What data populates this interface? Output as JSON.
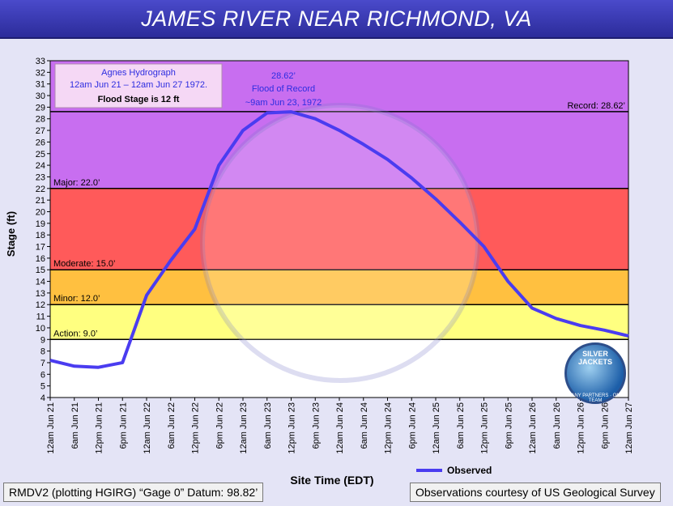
{
  "title": "JAMES RIVER NEAR RICHMOND, VA",
  "info_box": {
    "line1": "Agnes Hydrograph",
    "line2": "12am Jun 21 – 12am Jun 27 1972.",
    "line3": "Flood Stage is 12 ft"
  },
  "peak_annotation": {
    "line1": "28.62’",
    "line2": "Flood of Record",
    "line3": "~9am Jun 23, 1972"
  },
  "footer_left": "RMDV2 (plotting HGIRG) “Gage 0” Datum: 98.82’",
  "footer_right": "Observations courtesy of US Geological Survey",
  "logo": {
    "top": "SILVER JACKETS",
    "bottom": "MANY PARTNERS · ONE TEAM"
  },
  "chart_data": {
    "type": "line",
    "xlabel": "Site Time (EDT)",
    "ylabel": "Stage (ft)",
    "ylim": [
      4,
      33
    ],
    "y_ticks": [
      4,
      5,
      6,
      7,
      8,
      9,
      10,
      11,
      12,
      13,
      14,
      15,
      16,
      17,
      18,
      19,
      20,
      21,
      22,
      23,
      24,
      25,
      26,
      27,
      28,
      29,
      30,
      31,
      32,
      33
    ],
    "x_ticks": [
      "12am Jun 21",
      "6am Jun 21",
      "12pm Jun 21",
      "6pm Jun 21",
      "12am Jun 22",
      "6am Jun 22",
      "12pm Jun 22",
      "6pm Jun 22",
      "12am Jun 23",
      "6am Jun 23",
      "12pm Jun 23",
      "6pm Jun 23",
      "12am Jun 24",
      "6am Jun 24",
      "12pm Jun 24",
      "6pm Jun 24",
      "12am Jun 25",
      "6am Jun 25",
      "12pm Jun 25",
      "6pm Jun 25",
      "12am Jun 26",
      "6am Jun 26",
      "12pm Jun 26",
      "6pm Jun 26",
      "12am Jun 27"
    ],
    "grid": false,
    "legend": "bottom-center",
    "series": [
      {
        "name": "Observed",
        "color": "#4a3cf0",
        "x": [
          "12am Jun 21",
          "6am Jun 21",
          "12pm Jun 21",
          "6pm Jun 21",
          "12am Jun 22",
          "6am Jun 22",
          "12pm Jun 22",
          "6pm Jun 22",
          "12am Jun 23",
          "6am Jun 23",
          "12pm Jun 23",
          "6pm Jun 23",
          "12am Jun 24",
          "6am Jun 24",
          "12pm Jun 24",
          "6pm Jun 24",
          "12am Jun 25",
          "6am Jun 25",
          "12pm Jun 25",
          "6pm Jun 25",
          "12am Jun 26",
          "6am Jun 26",
          "12pm Jun 26",
          "6pm Jun 26",
          "12am Jun 27"
        ],
        "values": [
          7.2,
          6.7,
          6.6,
          7.0,
          12.8,
          15.8,
          18.5,
          24.0,
          27.0,
          28.5,
          28.6,
          28.0,
          27.0,
          25.8,
          24.5,
          22.9,
          21.1,
          19.1,
          17.0,
          14.0,
          11.7,
          10.8,
          10.2,
          9.8,
          9.3
        ]
      }
    ],
    "bands": [
      {
        "label": "Action: 9.0’",
        "from": 9,
        "to": 12,
        "color": "#ffff80"
      },
      {
        "label": "Minor: 12.0’",
        "from": 12,
        "to": 15,
        "color": "#ffc040"
      },
      {
        "label": "Moderate: 15.0’",
        "from": 15,
        "to": 22,
        "color": "#ff5a5a"
      },
      {
        "label": "Major: 22.0’",
        "from": 22,
        "to": 33,
        "color": "#c86ef0"
      }
    ],
    "record": {
      "label": "Record: 28.62’",
      "value": 28.62
    }
  }
}
